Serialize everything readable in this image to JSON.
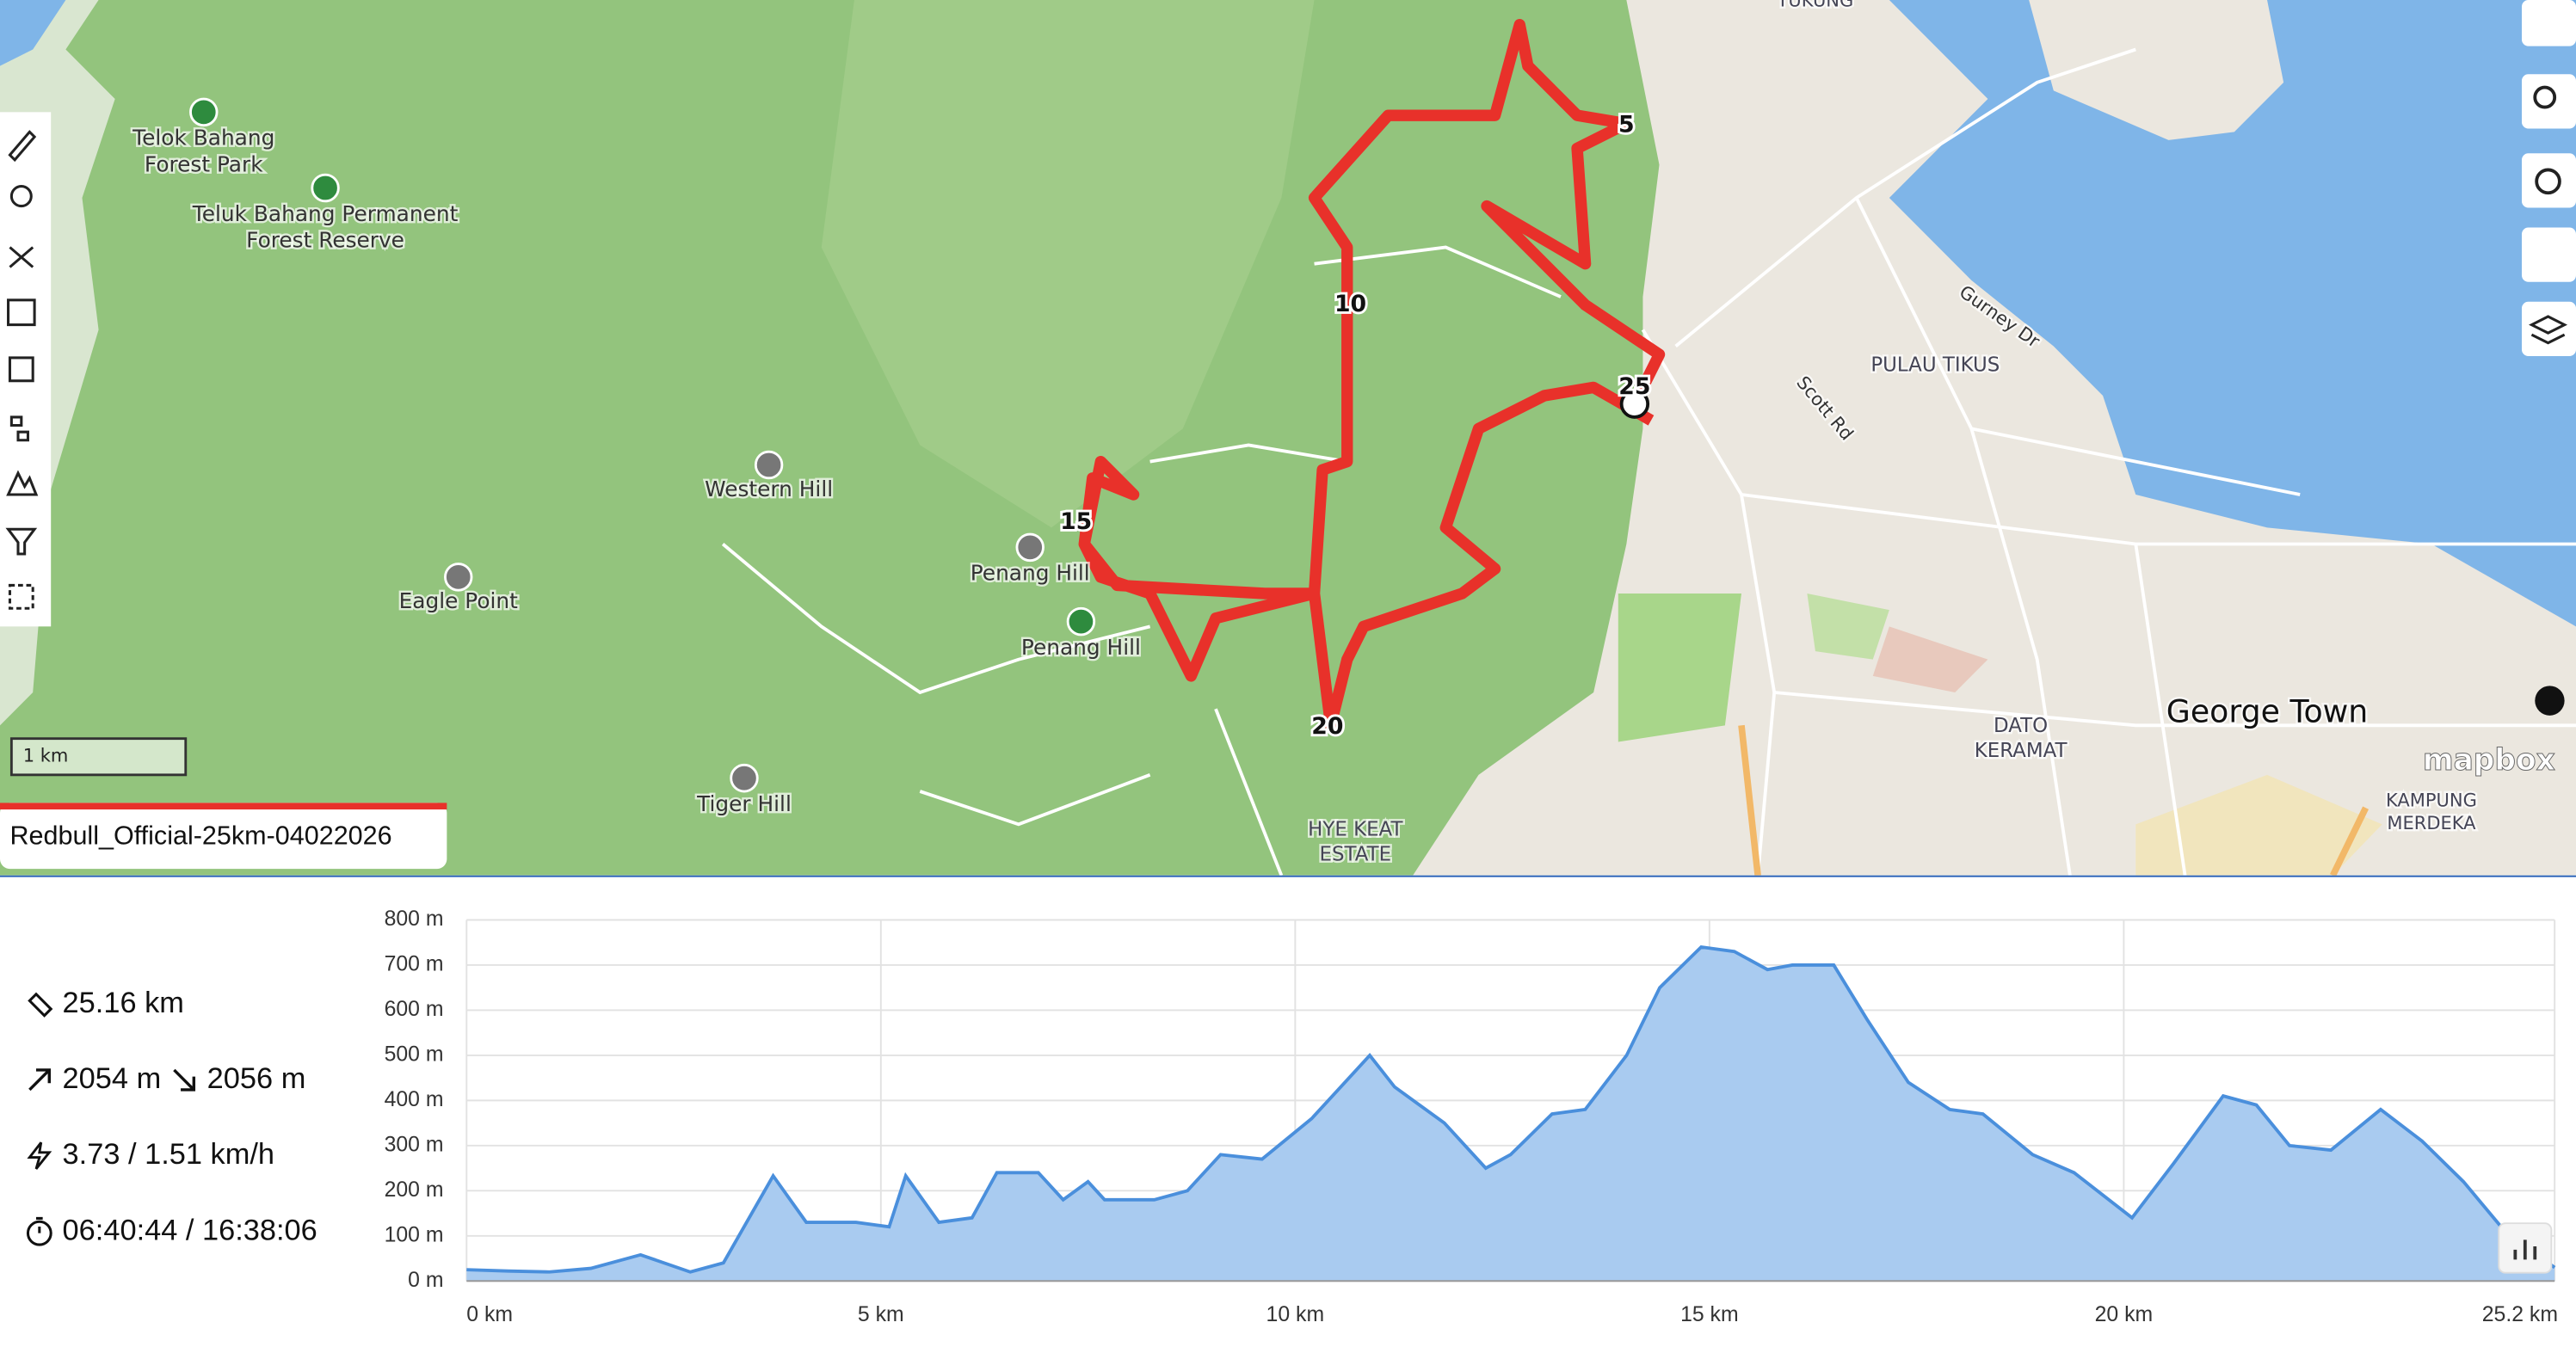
{
  "map": {
    "labels": [
      {
        "lines": [
          "TUKUNG"
        ]
      },
      {
        "lines": [
          "Telok Bahang",
          "Forest Park"
        ]
      },
      {
        "lines": [
          "Teluk Bahang Permanent",
          "Forest Reserve"
        ]
      },
      {
        "lines": [
          "Western Hill"
        ]
      },
      {
        "lines": [
          "Eagle Point"
        ]
      },
      {
        "lines": [
          "Penang Hill"
        ]
      },
      {
        "lines": [
          "Penang Hill"
        ]
      },
      {
        "lines": [
          "Tiger Hill"
        ]
      },
      {
        "lines": [
          "HYE KEAT",
          "ESTATE"
        ]
      },
      {
        "lines": [
          "PULAU TIKUS"
        ]
      },
      {
        "lines": [
          "Gurney Dr"
        ]
      },
      {
        "lines": [
          "Scott Rd"
        ]
      },
      {
        "lines": [
          "DATO",
          "KERAMAT"
        ]
      },
      {
        "lines": [
          "George Town"
        ]
      },
      {
        "lines": [
          "KAMPUNG",
          "MERDEKA"
        ]
      }
    ],
    "km_markers": [
      "5",
      "10",
      "15",
      "20",
      "25"
    ],
    "scale": "1 km",
    "attribution": "mapbox",
    "route_name": "Redbull_Official-25km-04022026"
  },
  "stats": {
    "distance": "25.16 km",
    "ascent": "2054 m",
    "descent": "2056 m",
    "speed": "3.73 / 1.51 km/h",
    "time": "06:40:44 / 16:38:06"
  },
  "chart_data": {
    "type": "area",
    "x": [
      0,
      0.5,
      1,
      1.5,
      2.1,
      2.7,
      3.1,
      3.7,
      4.1,
      4.7,
      5.1,
      5.3,
      5.7,
      6.1,
      6.4,
      6.9,
      7.2,
      7.5,
      7.7,
      8.3,
      8.7,
      9.1,
      9.6,
      10,
      10.2,
      10.9,
      11.2,
      11.8,
      12.3,
      12.6,
      13.1,
      13.5,
      14,
      14.4,
      14.9,
      15.3,
      15.7,
      16,
      16.5,
      16.9,
      17.4,
      17.9,
      18.3,
      18.9,
      19.4,
      20.1,
      20.6,
      21.2,
      21.6,
      22,
      22.5,
      23.1,
      23.6,
      24.1,
      24.6,
      25.2
    ],
    "values": [
      25,
      22,
      20,
      28,
      58,
      20,
      40,
      233,
      130,
      130,
      120,
      233,
      130,
      140,
      240,
      240,
      180,
      220,
      180,
      180,
      200,
      280,
      270,
      330,
      360,
      500,
      430,
      350,
      250,
      280,
      370,
      380,
      500,
      650,
      740,
      730,
      690,
      700,
      700,
      580,
      440,
      380,
      370,
      280,
      240,
      140,
      260,
      410,
      390,
      300,
      290,
      380,
      310,
      220,
      110,
      30
    ],
    "color": "#4a8fdc",
    "fill": "#a9cbf0",
    "xlim": [
      0,
      25.2
    ],
    "ylim": [
      0,
      800
    ],
    "xticks": [
      {
        "value": 0,
        "label": "0 km"
      },
      {
        "value": 5,
        "label": "5 km"
      },
      {
        "value": 10,
        "label": "10 km"
      },
      {
        "value": 15,
        "label": "15 km"
      },
      {
        "value": 20,
        "label": "20 km"
      },
      {
        "value": 25.2,
        "label": "25.2 km"
      }
    ],
    "yticks": [
      {
        "value": 0,
        "label": "0 m"
      },
      {
        "value": 100,
        "label": "100 m"
      },
      {
        "value": 200,
        "label": "200 m"
      },
      {
        "value": 300,
        "label": "300 m"
      },
      {
        "value": 400,
        "label": "400 m"
      },
      {
        "value": 500,
        "label": "500 m"
      },
      {
        "value": 600,
        "label": "600 m"
      },
      {
        "value": 700,
        "label": "700 m"
      },
      {
        "value": 800,
        "label": "800 m"
      }
    ],
    "grid": true
  }
}
